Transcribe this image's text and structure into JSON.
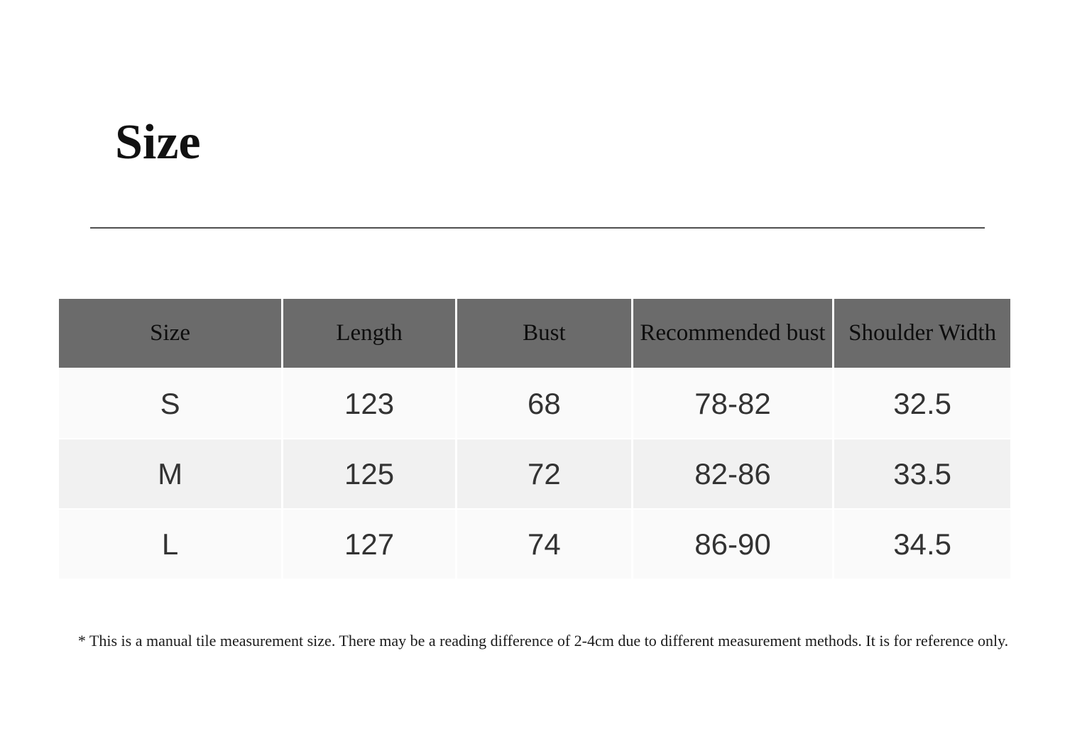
{
  "page": {
    "title": "Size"
  },
  "table": {
    "columns": [
      "Size",
      "Length",
      "Bust",
      "Recommended bust",
      "Shoulder Width"
    ],
    "rows": [
      {
        "size": "S",
        "length": "123",
        "bust": "68",
        "recommended_bust": "78-82",
        "shoulder_width": "32.5"
      },
      {
        "size": "M",
        "length": "125",
        "bust": "72",
        "recommended_bust": "82-86",
        "shoulder_width": "33.5"
      },
      {
        "size": "L",
        "length": "127",
        "bust": "74",
        "recommended_bust": "86-90",
        "shoulder_width": "34.5"
      }
    ]
  },
  "footnote": "* This is a manual tile measurement size. There may be a reading difference of 2-4cm due to different measurement methods. It is for reference only.",
  "colors": {
    "header_bg": "#6b6b6b",
    "row_light": "#fafafa",
    "row_mid": "#f1f1f1",
    "divider": "#4f4f4f"
  }
}
